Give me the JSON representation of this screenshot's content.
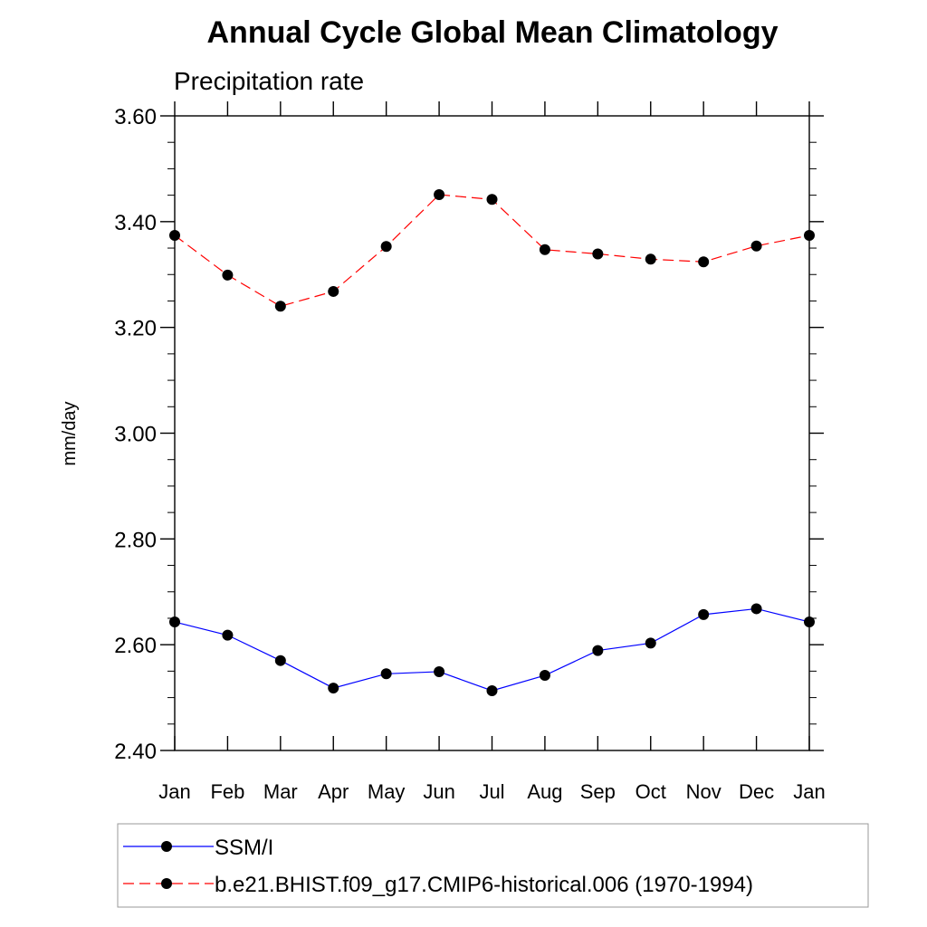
{
  "chart_data": {
    "type": "line",
    "title": "Annual Cycle Global Mean Climatology",
    "subtitle": "Precipitation rate",
    "xlabel": "",
    "ylabel": "mm/day",
    "categories": [
      "Jan",
      "Feb",
      "Mar",
      "Apr",
      "May",
      "Jun",
      "Jul",
      "Aug",
      "Sep",
      "Oct",
      "Nov",
      "Dec",
      "Jan"
    ],
    "ylim": [
      2.4,
      3.6
    ],
    "yticks": [
      "2.40",
      "2.60",
      "2.80",
      "3.00",
      "3.20",
      "3.40",
      "3.60"
    ],
    "ytick_values": [
      2.4,
      2.6,
      2.8,
      3.0,
      3.2,
      3.4,
      3.6
    ],
    "series": [
      {
        "name": "SSM/I",
        "color": "#0000ff",
        "dash": "solid",
        "values": [
          2.643,
          2.618,
          2.57,
          2.518,
          2.545,
          2.549,
          2.513,
          2.542,
          2.589,
          2.603,
          2.657,
          2.668,
          2.643
        ]
      },
      {
        "name": "b.e21.BHIST.f09_g17.CMIP6-historical.006 (1970-1994)",
        "color": "#ff0000",
        "dash": "dashed",
        "values": [
          3.374,
          3.299,
          3.24,
          3.268,
          3.353,
          3.451,
          3.442,
          3.347,
          3.339,
          3.329,
          3.324,
          3.354,
          3.374
        ]
      }
    ],
    "legend_position": "bottom"
  }
}
